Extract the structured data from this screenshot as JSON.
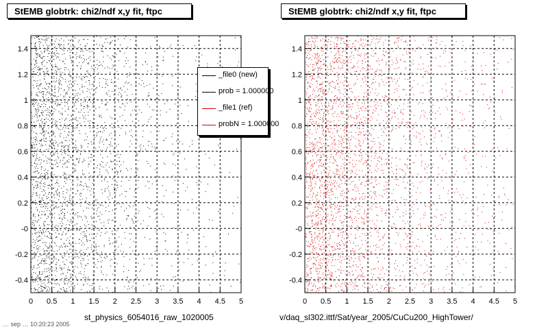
{
  "colors": {
    "left_series": "#000000",
    "right_series": "#d00000"
  },
  "panels": [
    {
      "title": "StEMB globtrk: chi2/ndf x,y fit, ftpc",
      "footer": "st_physics_6054016_raw_1020005"
    },
    {
      "title": "StEMB globtrk: chi2/ndf x,y fit, ftpc",
      "footer": "v/daq_sl302.ittf/Sat/year_2005/CuCu200_HighTower/"
    }
  ],
  "stamp": "… sep  … 10:20:23 2005",
  "legend": [
    {
      "label": "_file0 (new)",
      "color": "#000000"
    },
    {
      "label": "prob = 1.000000",
      "color": "#000000"
    },
    {
      "label": "_file1 (ref)",
      "color": "#d00000"
    },
    {
      "label": "probN = 1.000000",
      "color": "#d00000"
    }
  ],
  "chart_data": [
    {
      "type": "scatter",
      "title": "StEMB globtrk: chi2/ndf x,y fit, ftpc",
      "xlabel": "",
      "ylabel": "",
      "xlim": [
        0,
        5
      ],
      "ylim": [
        -0.5,
        1.5
      ],
      "x_ticks": [
        "0",
        "0.5",
        "1",
        "1.5",
        "2",
        "2.5",
        "3",
        "3.5",
        "4",
        "4.5",
        "5"
      ],
      "y_ticks": [
        "-0.4",
        "-0.2",
        "-0",
        "0.2",
        "0.4",
        "0.6",
        "0.8",
        "1",
        "1.2",
        "1.4"
      ],
      "grid": true,
      "series": [
        {
          "name": "_file0 (new)",
          "color": "#000000",
          "description": "dense points concentrated at low x, density decreasing toward x=5, uniform in y",
          "density_profile": {
            "x_bins": [
              0.25,
              0.75,
              1.25,
              1.75,
              2.25,
              2.75,
              3.25,
              3.75,
              4.25,
              4.75
            ],
            "relative_density": [
              1.0,
              0.72,
              0.5,
              0.34,
              0.22,
              0.14,
              0.09,
              0.06,
              0.04,
              0.03
            ]
          }
        }
      ]
    },
    {
      "type": "scatter",
      "title": "StEMB globtrk: chi2/ndf x,y fit, ftpc",
      "xlabel": "",
      "ylabel": "",
      "xlim": [
        0,
        5
      ],
      "ylim": [
        -0.5,
        1.5
      ],
      "x_ticks": [
        "0",
        "0.5",
        "1",
        "1.5",
        "2",
        "2.5",
        "3",
        "3.5",
        "4",
        "4.5",
        "5"
      ],
      "y_ticks": [
        "-0.4",
        "-0.2",
        "-0",
        "0.2",
        "0.4",
        "0.6",
        "0.8",
        "1",
        "1.2",
        "1.4"
      ],
      "grid": true,
      "series": [
        {
          "name": "_file1 (ref)",
          "color": "#d00000",
          "description": "dense points concentrated at low x, density decreasing toward x=5, uniform in y",
          "density_profile": {
            "x_bins": [
              0.25,
              0.75,
              1.25,
              1.75,
              2.25,
              2.75,
              3.25,
              3.75,
              4.25,
              4.75
            ],
            "relative_density": [
              1.0,
              0.78,
              0.58,
              0.42,
              0.3,
              0.21,
              0.15,
              0.11,
              0.08,
              0.06
            ]
          }
        }
      ]
    }
  ]
}
